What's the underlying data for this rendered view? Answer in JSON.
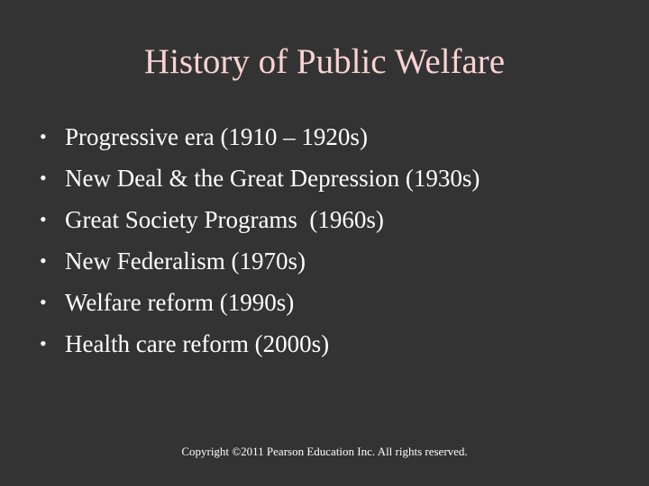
{
  "slide": {
    "title": "History of Public Welfare",
    "bullets": [
      "Progressive era (1910 – 1920s)",
      "New Deal & the Great Depression (1930s)",
      "Great Society Programs  (1960s)",
      "New Federalism (1970s)",
      "Welfare reform (1990s)",
      "Health care reform (2000s)"
    ],
    "bullet_glyph": "•",
    "footer": "Copyright ©2011 Pearson Education Inc. All rights reserved."
  },
  "colors": {
    "background": "#333333",
    "title": "#f9d2d2",
    "text": "#ffffff"
  }
}
